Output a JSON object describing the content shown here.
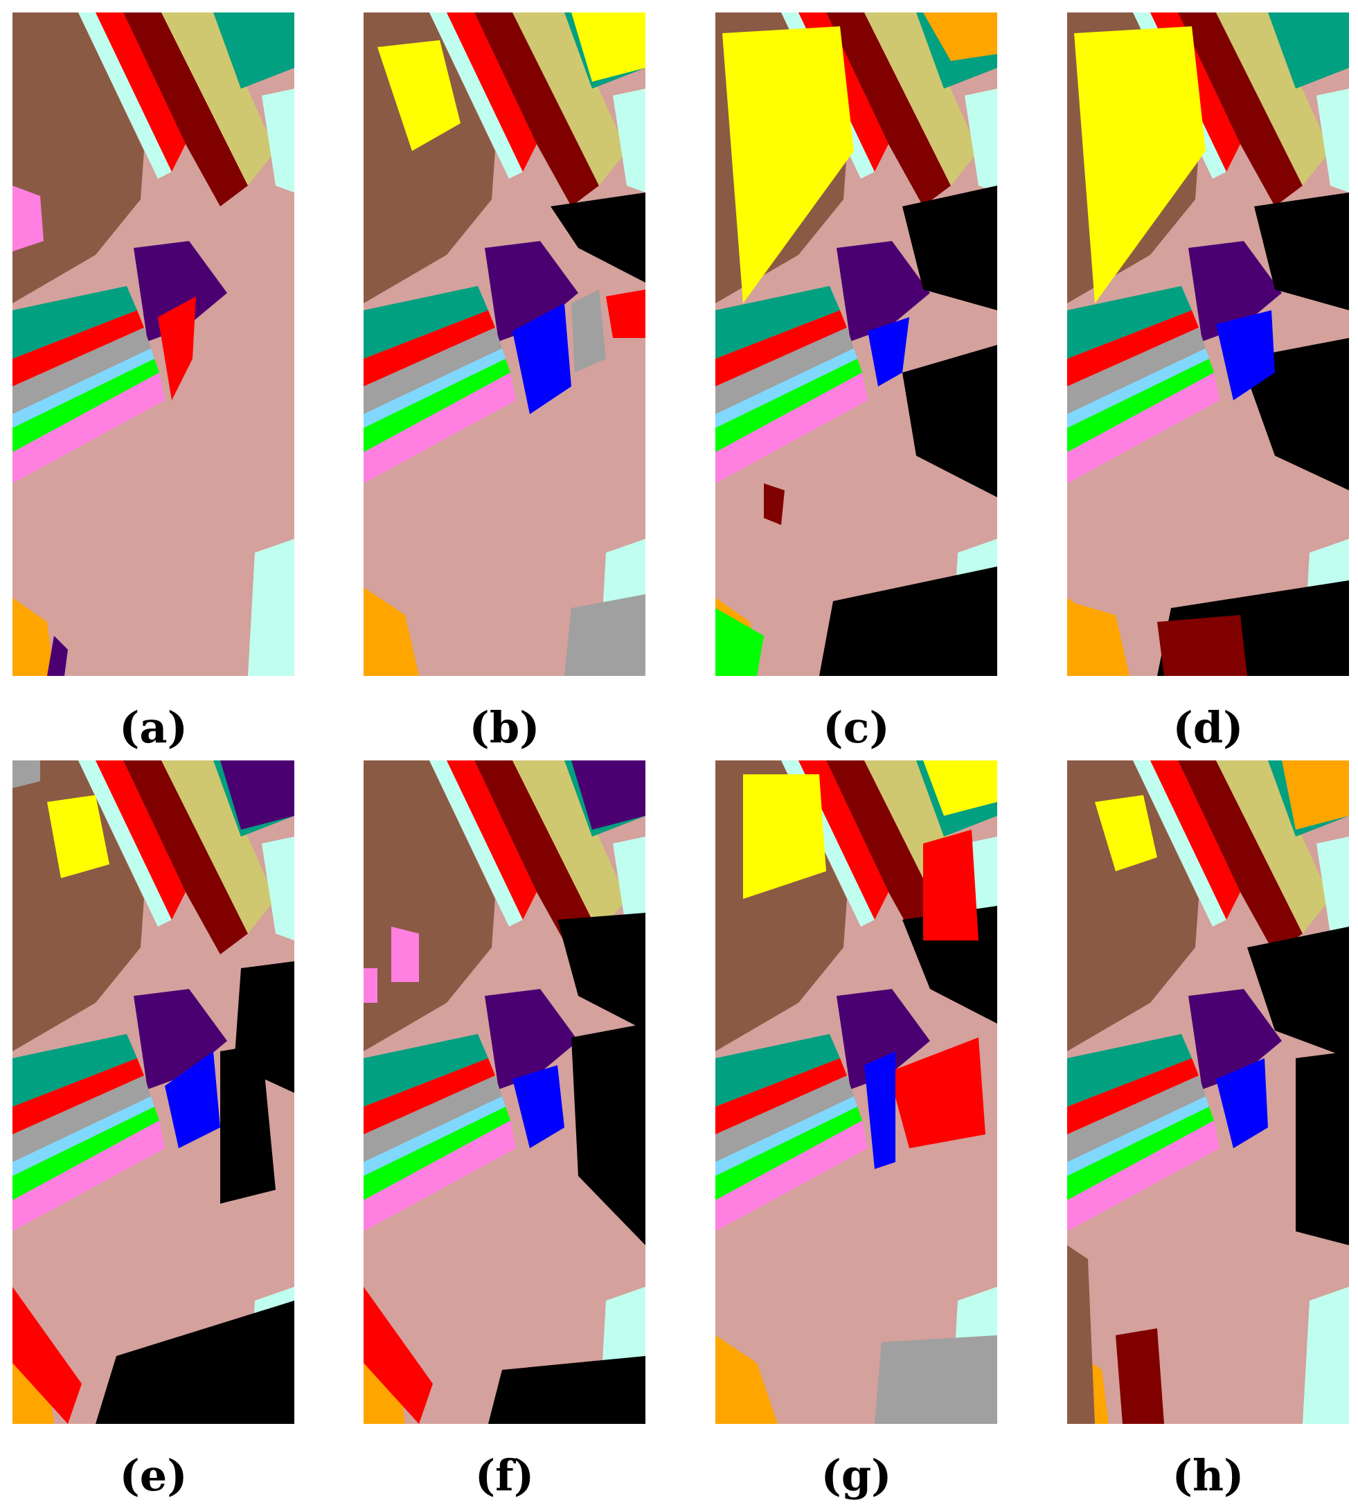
{
  "figure": {
    "panels": [
      {
        "label": "(a)",
        "variant": "a"
      },
      {
        "label": "(b)",
        "variant": "b"
      },
      {
        "label": "(c)",
        "variant": "c"
      },
      {
        "label": "(d)",
        "variant": "d"
      },
      {
        "label": "(e)",
        "variant": "e"
      },
      {
        "label": "(f)",
        "variant": "f"
      },
      {
        "label": "(g)",
        "variant": "g"
      },
      {
        "label": "(h)",
        "variant": "h"
      }
    ],
    "class_colors": {
      "brown": "#8B5A45",
      "teal": "#00A080",
      "red": "#FF0000",
      "maroon": "#800000",
      "khaki": "#CFC870",
      "yellow": "#FFFF00",
      "pink_tan": "#D4A19C",
      "violet": "#4B0072",
      "gray": "#A0A0A0",
      "blue": "#0000FF",
      "light_blue": "#80D8FF",
      "green": "#00FF00",
      "pink": "#FF80E0",
      "orange": "#FFA500",
      "mint": "#C0FFF0",
      "black": "#000000"
    }
  }
}
